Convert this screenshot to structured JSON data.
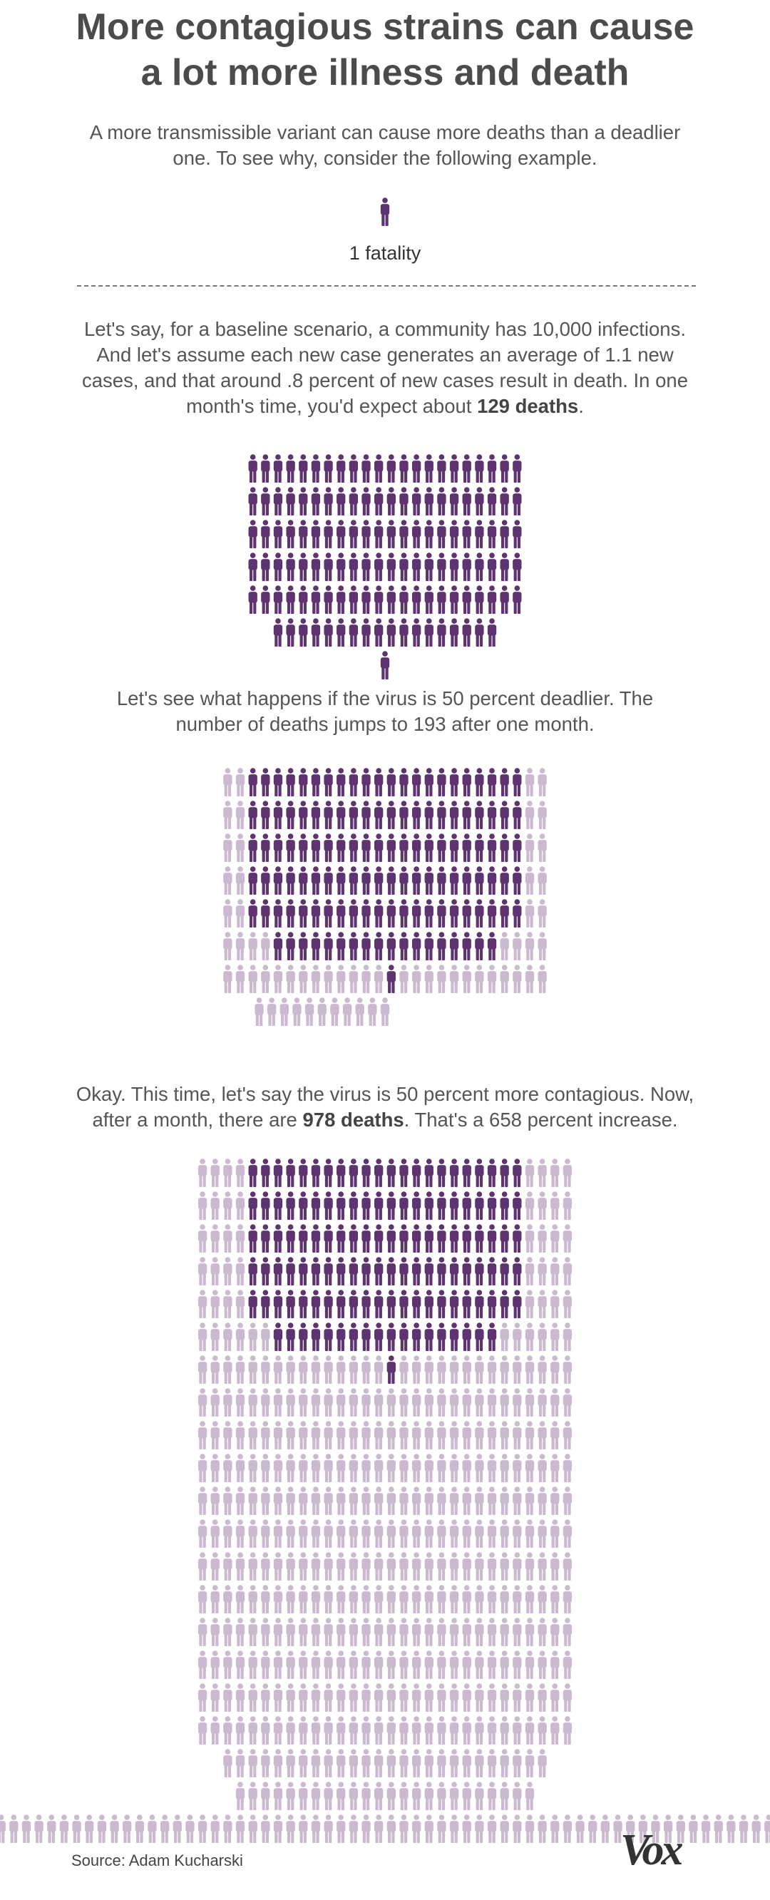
{
  "title_line1": "More contagious strains can cause",
  "title_line2": "a lot more illness and death",
  "intro_line1": "A more transmissible variant can cause more deaths than a deadlier",
  "intro_line2": "one. To see why, consider the following example.",
  "legend_label": "1 fatality",
  "baseline_line1": "Let's say, for a baseline scenario, a community has 10,000 infections.",
  "baseline_line2": "And let's assume each new case generates an average of 1.1 new",
  "baseline_line3": "cases, and that around .8 percent of new cases result in death. In one",
  "baseline_line4_pre": "month's time, you'd expect about ",
  "baseline_line4_bold": "129 deaths",
  "baseline_line4_post": ".",
  "deadlier_line1": "Let's see what happens if the virus is 50 percent deadlier. The",
  "deadlier_line2": "number of deaths jumps to 193 after one month.",
  "contagious_line1": "Okay. This time, let's say the virus is 50 percent more contagious. Now,",
  "contagious_line2_pre": "after a month, there are ",
  "contagious_line2_bold": "978 deaths",
  "contagious_line2_post": ". That's a 658 percent increase.",
  "source": "Source: Adam Kucharski",
  "logo_text": "Vox",
  "colors": {
    "dark": "#5e3470",
    "light": "#cbb9d0",
    "text": "#4b4b4b"
  },
  "chart_data": {
    "type": "pictogram",
    "unit": "1 fatality",
    "series": [
      {
        "name": "",
        "values": [
          129,
          193,
          978
        ]
      }
    ],
    "baseline_highlight": 129
  }
}
